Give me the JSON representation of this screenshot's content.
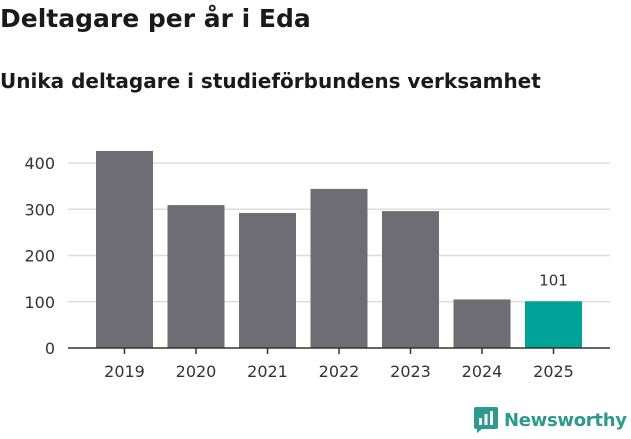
{
  "title": "Deltagare per år i Eda",
  "subtitle": "Unika deltagare i studieförbundens verksamhet",
  "logo": {
    "text": "Newsworthy",
    "icon": "bar-chart-icon"
  },
  "colors": {
    "bar": "#6e6d73",
    "highlight": "#00a398",
    "grid": "#dddddd",
    "axis": "#333333",
    "text": "#333333",
    "logo": "#2c9a8e"
  },
  "chart_data": {
    "type": "bar",
    "title": "Deltagare per år i Eda",
    "subtitle": "Unika deltagare i studieförbundens verksamhet",
    "xlabel": "",
    "ylabel": "",
    "categories": [
      "2019",
      "2020",
      "2021",
      "2022",
      "2023",
      "2024",
      "2025"
    ],
    "values": [
      426,
      309,
      292,
      344,
      296,
      105,
      101
    ],
    "highlight_index": 6,
    "data_labels": [
      {
        "index": 6,
        "text": "101"
      }
    ],
    "ylim": [
      0,
      430
    ],
    "yticks": [
      0,
      100,
      200,
      300,
      400
    ],
    "grid": true,
    "legend": "none"
  }
}
